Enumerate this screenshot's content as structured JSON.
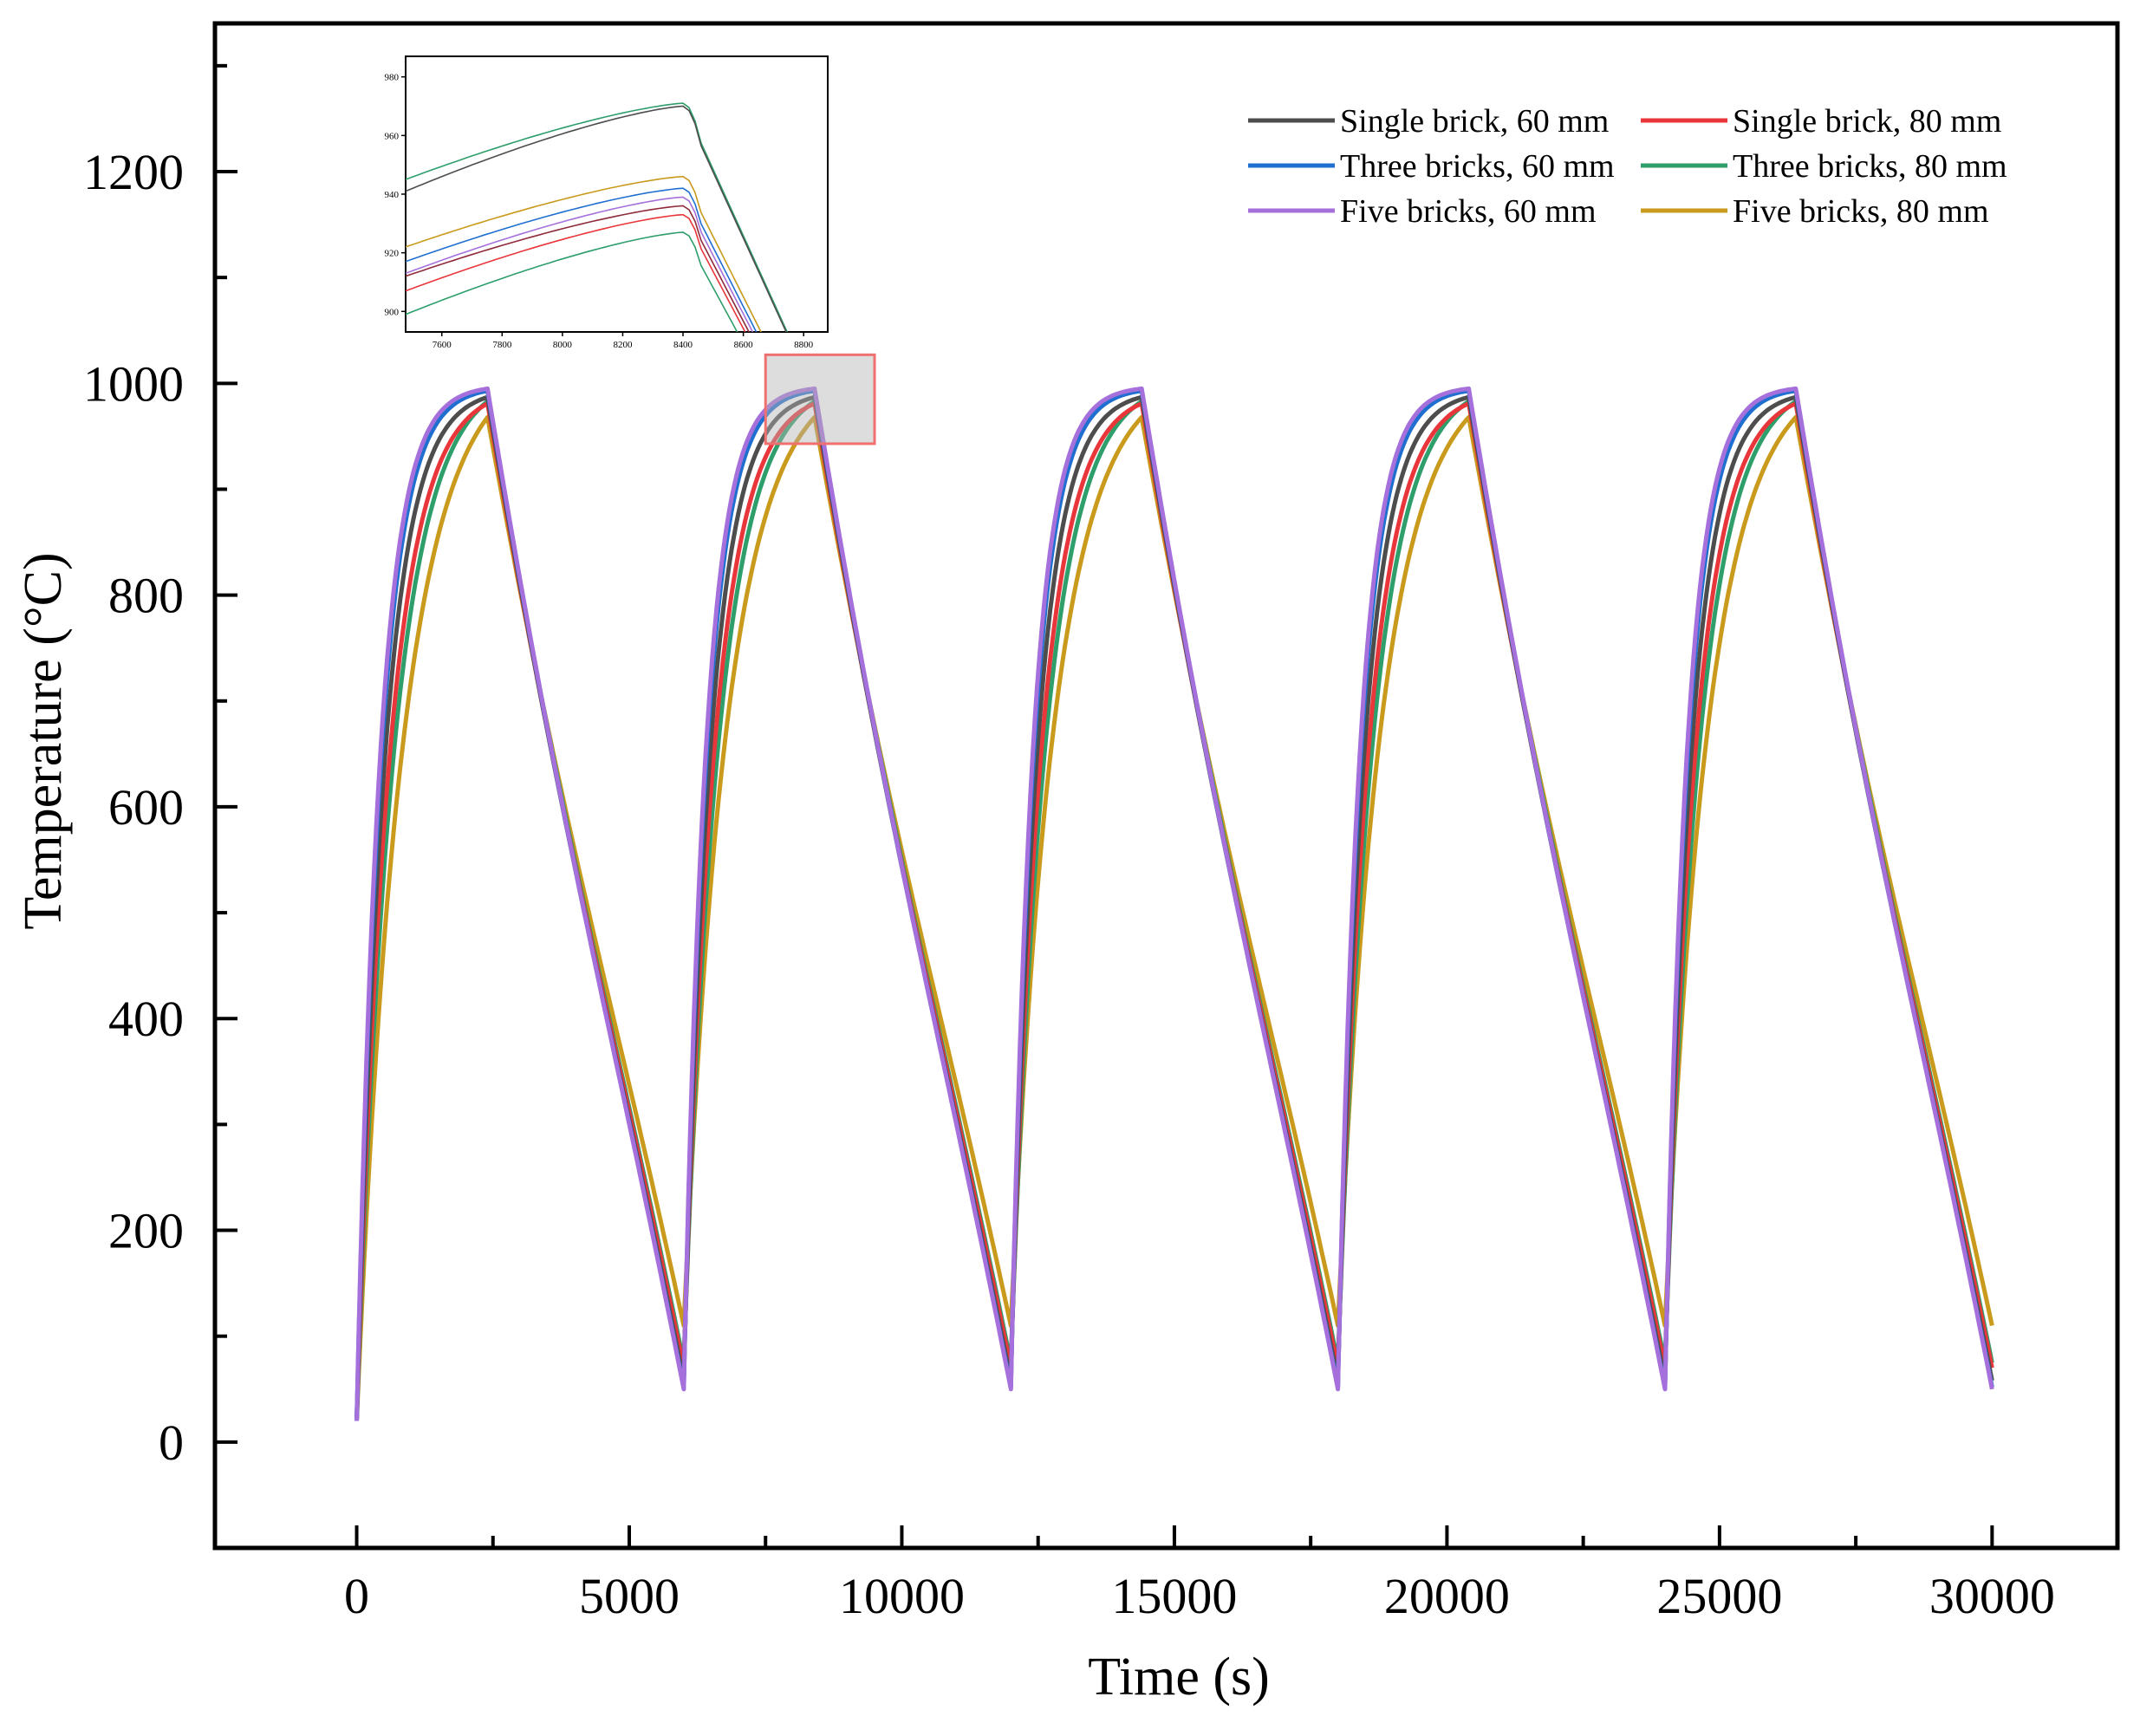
{
  "chart_data": {
    "type": "line",
    "title": "",
    "xlabel": "Time (s)",
    "ylabel": "Temperature (°C)",
    "xlim": [
      -2600,
      32300
    ],
    "ylim": [
      -100,
      1340
    ],
    "x_ticks": [
      0,
      5000,
      10000,
      15000,
      20000,
      25000,
      30000
    ],
    "x_tick_labels": [
      "0",
      "5000",
      "10000",
      "15000",
      "20000",
      "25000",
      "30000"
    ],
    "y_ticks": [
      0,
      200,
      400,
      600,
      800,
      1000,
      1200
    ],
    "y_tick_labels": [
      "0",
      "200",
      "400",
      "600",
      "800",
      "1000",
      "1200"
    ],
    "grid": false,
    "legend_position": "top-right",
    "cycle_period": 6000,
    "heating_end_time": 2400,
    "initial_temperature": 20,
    "end_time": 30000,
    "series": [
      {
        "name": "Single brick, 60 mm",
        "color": "#4d4d4d",
        "peak_temperature": 987,
        "cooled_temperature": 58,
        "heating_time_constant": 480
      },
      {
        "name": "Single brick, 80 mm",
        "color": "#e8363b",
        "peak_temperature": 981,
        "cooled_temperature": 70,
        "heating_time_constant": 560
      },
      {
        "name": "Three bricks, 60 mm",
        "color": "#1f6fd1",
        "peak_temperature": 993,
        "cooled_temperature": 52,
        "heating_time_constant": 420
      },
      {
        "name": "Three bricks, 80 mm",
        "color": "#2e9e6a",
        "peak_temperature": 983,
        "cooled_temperature": 75,
        "heating_time_constant": 640
      },
      {
        "name": "Five bricks, 60 mm",
        "color": "#a570dc",
        "peak_temperature": 995,
        "cooled_temperature": 50,
        "heating_time_constant": 400
      },
      {
        "name": "Five bricks, 80 mm",
        "color": "#c99a1c",
        "peak_temperature": 968,
        "cooled_temperature": 110,
        "heating_time_constant": 800
      }
    ],
    "zoom_region": {
      "x_range": [
        7500,
        9500
      ],
      "y_range": [
        943,
        1027
      ]
    },
    "inset": {
      "x_range": [
        7480,
        8880
      ],
      "y_range": [
        893,
        987
      ],
      "x_ticks": [
        7600,
        7800,
        8000,
        8200,
        8400,
        8600,
        8800
      ],
      "x_tick_labels": [
        "7600",
        "7800",
        "8000",
        "8200",
        "8400",
        "8600",
        "8800"
      ],
      "y_ticks": [
        900,
        920,
        940,
        960,
        980
      ],
      "y_tick_labels": [
        "900",
        "920",
        "940",
        "960",
        "980"
      ],
      "peak_time": 8400,
      "curves": [
        {
          "color": "#2e9e6a",
          "start_temperature": 945,
          "peak_temperature": 971
        },
        {
          "color": "#4d4d4d",
          "start_temperature": 941,
          "peak_temperature": 970
        },
        {
          "color": "#c99a1c",
          "start_temperature": 922,
          "peak_temperature": 946
        },
        {
          "color": "#1f6fd1",
          "start_temperature": 917,
          "peak_temperature": 942
        },
        {
          "color": "#a570dc",
          "start_temperature": 913,
          "peak_temperature": 939
        },
        {
          "color": "#8e2a3a",
          "start_temperature": 912,
          "peak_temperature": 936
        },
        {
          "color": "#e8363b",
          "start_temperature": 907,
          "peak_temperature": 933
        },
        {
          "color": "#2e9e6a",
          "start_temperature": 899,
          "peak_temperature": 927
        }
      ]
    }
  }
}
